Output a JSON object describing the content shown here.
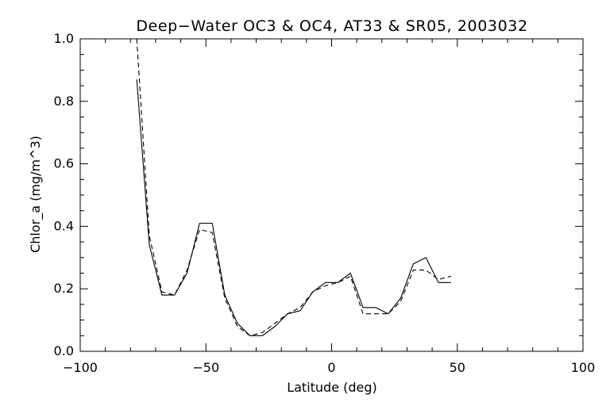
{
  "chart_data": {
    "type": "line",
    "title": "Deep−Water OC3 & OC4, AT33 & SR05, 2003032",
    "xlabel": "Latitude (deg)",
    "ylabel": "Chlor_a (mg/m^3)",
    "xlim": [
      -100,
      100
    ],
    "ylim": [
      0.0,
      1.0
    ],
    "x_ticks": [
      -100,
      -50,
      0,
      50,
      100
    ],
    "x_tick_labels": [
      "−100",
      "−50",
      "0",
      "50",
      "100"
    ],
    "y_ticks": [
      0.0,
      0.2,
      0.4,
      0.6,
      0.8,
      1.0
    ],
    "y_tick_labels": [
      "0.0",
      "0.2",
      "0.4",
      "0.6",
      "0.8",
      "1.0"
    ],
    "grid": false,
    "series": [
      {
        "style": "solid",
        "color": "#000000",
        "x": [
          -77.5,
          -72.5,
          -67.5,
          -62.5,
          -57.5,
          -52.5,
          -47.5,
          -42.5,
          -37.5,
          -32.5,
          -27.5,
          -22.5,
          -17.5,
          -12.5,
          -7.5,
          -2.5,
          2.5,
          7.5,
          12.5,
          17.5,
          22.5,
          27.5,
          32.5,
          37.5,
          42.5,
          47.5
        ],
        "values": [
          0.87,
          0.34,
          0.18,
          0.18,
          0.25,
          0.41,
          0.41,
          0.18,
          0.09,
          0.05,
          0.05,
          0.08,
          0.12,
          0.13,
          0.19,
          0.22,
          0.22,
          0.25,
          0.14,
          0.14,
          0.12,
          0.17,
          0.28,
          0.3,
          0.22,
          0.22
        ]
      },
      {
        "style": "dashed",
        "color": "#000000",
        "x": [
          -77.5,
          -72.5,
          -67.5,
          -62.5,
          -57.5,
          -52.5,
          -47.5,
          -42.5,
          -37.5,
          -32.5,
          -27.5,
          -22.5,
          -17.5,
          -12.5,
          -7.5,
          -2.5,
          2.5,
          7.5,
          12.5,
          17.5,
          22.5,
          27.5,
          32.5,
          37.5,
          42.5,
          47.5
        ],
        "values": [
          1.0,
          0.37,
          0.19,
          0.18,
          0.26,
          0.39,
          0.38,
          0.17,
          0.08,
          0.05,
          0.06,
          0.09,
          0.12,
          0.14,
          0.19,
          0.21,
          0.22,
          0.24,
          0.12,
          0.12,
          0.12,
          0.16,
          0.26,
          0.26,
          0.23,
          0.24
        ]
      }
    ]
  }
}
